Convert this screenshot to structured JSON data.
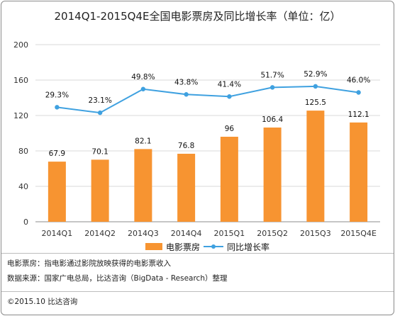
{
  "chart_data": {
    "type": "bar+line",
    "title": "2014Q1-2015Q4E全国电影票房及同比增长率（单位：亿）",
    "categories": [
      "2014Q1",
      "2014Q2",
      "2014Q3",
      "2014Q4",
      "2015Q1",
      "2015Q2",
      "2015Q3",
      "2015Q4E"
    ],
    "series": [
      {
        "name": "电影票房",
        "type": "bar",
        "values": [
          67.9,
          70.1,
          82.1,
          76.8,
          96,
          106.4,
          125.5,
          112.1
        ],
        "labels": [
          "67.9",
          "70.1",
          "82.1",
          "76.8",
          "96",
          "106.4",
          "125.5",
          "112.1"
        ],
        "color": "#f79431"
      },
      {
        "name": "同比增长率",
        "type": "line",
        "values": [
          29.3,
          23.1,
          49.8,
          43.8,
          41.4,
          51.7,
          52.9,
          46.0
        ],
        "labels": [
          "29.3%",
          "23.1%",
          "49.8%",
          "43.8%",
          "41.4%",
          "51.7%",
          "52.9%",
          "46.0%"
        ],
        "color": "#3fa1e0"
      }
    ],
    "yticks": [
      "0",
      "40",
      "80",
      "120",
      "160",
      "200"
    ],
    "ylim": [
      0,
      200
    ],
    "grid": true,
    "legend_position": "bottom"
  },
  "notes": {
    "definition": "电影票房：指电影通过影院放映获得的电影票收入",
    "source": "数据来源：国家广电总局，比达咨询（BigData - Research）整理",
    "copyright": "©2015.10  比达咨询"
  }
}
